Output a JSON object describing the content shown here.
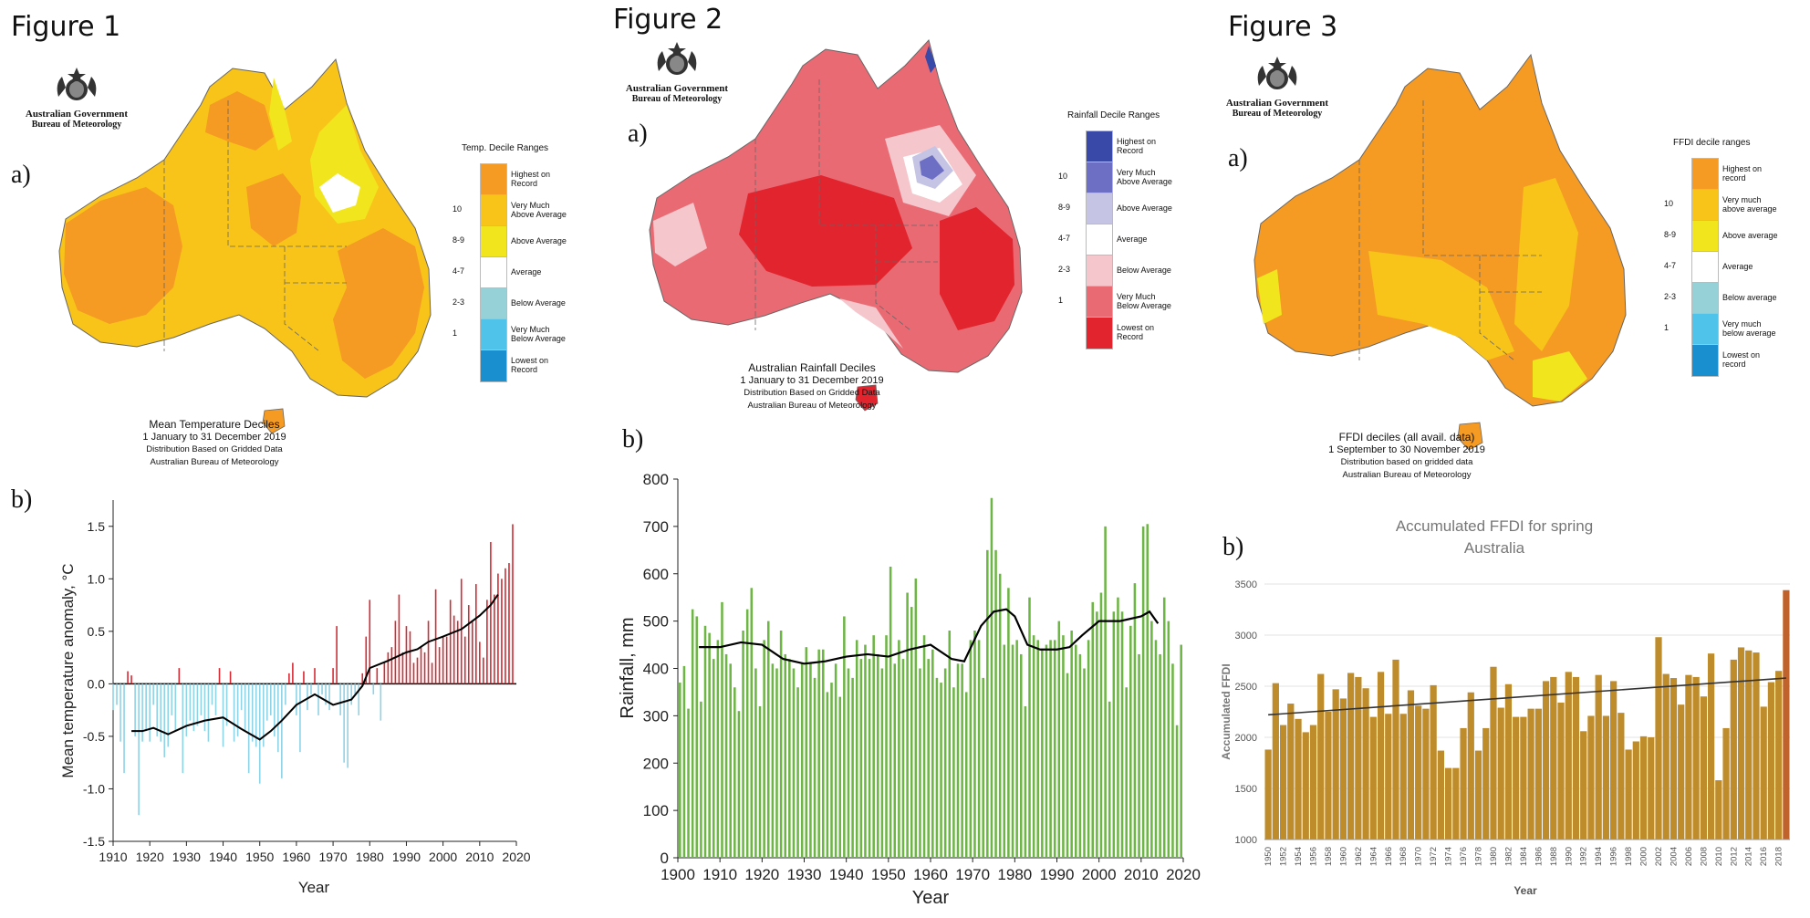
{
  "figures": {
    "f1": {
      "label": "Figure 1",
      "sub_a": "a)",
      "sub_b": "b)",
      "logo": {
        "gov": "Australian Government",
        "bureau": "Bureau of Meteorology"
      },
      "legend_title": "Temp. Decile Ranges",
      "legend": [
        {
          "rank": "",
          "label1": "Highest on",
          "label2": "Record",
          "color": "#f59a23"
        },
        {
          "rank": "10",
          "label1": "Very Much",
          "label2": "Above Average",
          "color": "#f8c41a"
        },
        {
          "rank": "8-9",
          "label1": "Above Average",
          "label2": "",
          "color": "#f1e61e"
        },
        {
          "rank": "4-7",
          "label1": "Average",
          "label2": "",
          "color": "#ffffff"
        },
        {
          "rank": "2-3",
          "label1": "Below Average",
          "label2": "",
          "color": "#96d1d8"
        },
        {
          "rank": "1",
          "label1": "Very Much",
          "label2": "Below Average",
          "color": "#4fc3ea"
        },
        {
          "rank": "",
          "label1": "Lowest on",
          "label2": "Record",
          "color": "#1a8fcf"
        }
      ],
      "caption": {
        "title": "Mean Temperature Deciles",
        "period": "1 January to 31 December 2019",
        "line3": "Distribution Based on Gridded Data",
        "line4": "Australian Bureau of Meteorology"
      }
    },
    "f2": {
      "label": "Figure 2",
      "sub_a": "a)",
      "sub_b": "b)",
      "logo": {
        "gov": "Australian Government",
        "bureau": "Bureau of Meteorology"
      },
      "legend_title": "Rainfall Decile Ranges",
      "legend": [
        {
          "rank": "",
          "label1": "Highest on",
          "label2": "Record",
          "color": "#3949a8"
        },
        {
          "rank": "10",
          "label1": "Very Much",
          "label2": "Above Average",
          "color": "#6d6fc4"
        },
        {
          "rank": "8-9",
          "label1": "Above Average",
          "label2": "",
          "color": "#c6c4e4"
        },
        {
          "rank": "4-7",
          "label1": "Average",
          "label2": "",
          "color": "#ffffff"
        },
        {
          "rank": "2-3",
          "label1": "Below Average",
          "label2": "",
          "color": "#f5c6cb"
        },
        {
          "rank": "1",
          "label1": "Very Much",
          "label2": "Below Average",
          "color": "#ea6a74"
        },
        {
          "rank": "",
          "label1": "Lowest on",
          "label2": "Record",
          "color": "#e1242e"
        }
      ],
      "caption": {
        "title": "Australian Rainfall Deciles",
        "period": "1 January to 31 December 2019",
        "line3": "Distribution Based on Gridded Data",
        "line4": "Australian Bureau of Meteorology"
      }
    },
    "f3": {
      "label": "Figure 3",
      "sub_a": "a)",
      "sub_b": "b)",
      "logo": {
        "gov": "Australian Government",
        "bureau": "Bureau of Meteorology"
      },
      "legend_title": "FFDI decile ranges",
      "legend": [
        {
          "rank": "",
          "label1": "Highest on",
          "label2": "record",
          "color": "#f59a23"
        },
        {
          "rank": "10",
          "label1": "Very much",
          "label2": "above average",
          "color": "#f8c41a"
        },
        {
          "rank": "8-9",
          "label1": "Above average",
          "label2": "",
          "color": "#f1e61e"
        },
        {
          "rank": "4-7",
          "label1": "Average",
          "label2": "",
          "color": "#ffffff"
        },
        {
          "rank": "2-3",
          "label1": "Below average",
          "label2": "",
          "color": "#96d1d8"
        },
        {
          "rank": "1",
          "label1": "Very much",
          "label2": "below average",
          "color": "#4fc3ea"
        },
        {
          "rank": "",
          "label1": "Lowest on",
          "label2": "record",
          "color": "#1a8fcf"
        }
      ],
      "caption": {
        "title": "FFDI deciles (all avail. data)",
        "period": "1 September to 30 November 2019",
        "line3": "Distribution based on gridded data",
        "line4": "Australian Bureau of Meteorology"
      }
    }
  },
  "chart_data": [
    {
      "id": "temperature",
      "type": "bar",
      "title": "",
      "xlabel": "Year",
      "ylabel": "Mean temperature anomaly, °C",
      "xlim": [
        1910,
        2020
      ],
      "ylim": [
        -1.5,
        1.75
      ],
      "xticks": [
        "1910",
        "1920",
        "1930",
        "1940",
        "1950",
        "1960",
        "1970",
        "1980",
        "1990",
        "2000",
        "2010",
        "2020"
      ],
      "yticks": [
        "-1.5",
        "-1.0",
        "-0.5",
        "0.0",
        "0.5",
        "1.0",
        "1.5"
      ],
      "pos_color": "#d62b34",
      "neg_color": "#8fd3e6",
      "smooth_color": "#000000",
      "x": [
        1910,
        1911,
        1912,
        1913,
        1914,
        1915,
        1916,
        1917,
        1918,
        1919,
        1920,
        1921,
        1922,
        1923,
        1924,
        1925,
        1926,
        1927,
        1928,
        1929,
        1930,
        1931,
        1932,
        1933,
        1934,
        1935,
        1936,
        1937,
        1938,
        1939,
        1940,
        1941,
        1942,
        1943,
        1944,
        1945,
        1946,
        1947,
        1948,
        1949,
        1950,
        1951,
        1952,
        1953,
        1954,
        1955,
        1956,
        1957,
        1958,
        1959,
        1960,
        1961,
        1962,
        1963,
        1964,
        1965,
        1966,
        1967,
        1968,
        1969,
        1970,
        1971,
        1972,
        1973,
        1974,
        1975,
        1976,
        1977,
        1978,
        1979,
        1980,
        1981,
        1982,
        1983,
        1984,
        1985,
        1986,
        1987,
        1988,
        1989,
        1990,
        1991,
        1992,
        1993,
        1994,
        1995,
        1996,
        1997,
        1998,
        1999,
        2000,
        2001,
        2002,
        2003,
        2004,
        2005,
        2006,
        2007,
        2008,
        2009,
        2010,
        2011,
        2012,
        2013,
        2014,
        2015,
        2016,
        2017,
        2018,
        2019
      ],
      "values": [
        -0.25,
        -0.2,
        -0.55,
        -0.85,
        0.12,
        0.08,
        -0.5,
        -1.25,
        -0.55,
        -0.45,
        -0.55,
        -0.2,
        -0.5,
        -0.55,
        -0.7,
        -0.6,
        -0.3,
        -0.45,
        0.15,
        -0.85,
        -0.5,
        -0.35,
        -0.45,
        -0.4,
        -0.3,
        -0.45,
        -0.55,
        -0.2,
        -0.3,
        0.15,
        -0.6,
        -0.4,
        0.12,
        -0.55,
        -0.5,
        -0.25,
        -0.45,
        -0.85,
        -0.55,
        -0.6,
        -0.95,
        -0.6,
        -0.35,
        -0.3,
        -0.5,
        -0.65,
        -0.9,
        -0.2,
        0.1,
        0.2,
        -0.3,
        -0.65,
        0.12,
        -0.25,
        -0.1,
        0.15,
        -0.3,
        -0.1,
        -0.2,
        -0.25,
        0.15,
        0.55,
        -0.3,
        -0.75,
        -0.8,
        -0.2,
        -0.1,
        -0.3,
        0.1,
        0.45,
        0.8,
        -0.1,
        0.15,
        -0.35,
        0.2,
        0.3,
        0.35,
        0.6,
        0.85,
        0.3,
        0.55,
        0.5,
        0.2,
        0.25,
        0.35,
        0.3,
        0.6,
        0.2,
        0.9,
        0.35,
        0.45,
        0.45,
        0.8,
        0.65,
        0.6,
        1.0,
        0.45,
        0.75,
        0.6,
        0.95,
        0.4,
        0.25,
        0.8,
        1.35,
        0.85,
        1.05,
        1.0,
        1.1,
        1.15,
        1.52
      ],
      "smooth_x": [
        1915,
        1918,
        1921,
        1925,
        1930,
        1935,
        1940,
        1945,
        1950,
        1953,
        1956,
        1960,
        1965,
        1970,
        1975,
        1978,
        1980,
        1985,
        1990,
        1993,
        1996,
        2000,
        2005,
        2010,
        2013,
        2015
      ],
      "smooth_y": [
        -0.45,
        -0.45,
        -0.42,
        -0.48,
        -0.4,
        -0.35,
        -0.32,
        -0.43,
        -0.53,
        -0.45,
        -0.35,
        -0.2,
        -0.1,
        -0.2,
        -0.15,
        -0.02,
        0.15,
        0.22,
        0.3,
        0.33,
        0.4,
        0.45,
        0.52,
        0.65,
        0.75,
        0.85
      ]
    },
    {
      "id": "rainfall",
      "type": "bar",
      "title": "",
      "xlabel": "Year",
      "ylabel": "Rainfall, mm",
      "xlim": [
        1900,
        2020
      ],
      "ylim": [
        0,
        800
      ],
      "xticks": [
        "1900",
        "1910",
        "1920",
        "1930",
        "1940",
        "1950",
        "1960",
        "1970",
        "1980",
        "1990",
        "2000",
        "2010",
        "2020"
      ],
      "yticks": [
        "0",
        "100",
        "200",
        "300",
        "400",
        "500",
        "600",
        "700",
        "800"
      ],
      "bar_color": "#6db545",
      "smooth_color": "#000000",
      "x": [
        1900,
        1901,
        1902,
        1903,
        1904,
        1905,
        1906,
        1907,
        1908,
        1909,
        1910,
        1911,
        1912,
        1913,
        1914,
        1915,
        1916,
        1917,
        1918,
        1919,
        1920,
        1921,
        1922,
        1923,
        1924,
        1925,
        1926,
        1927,
        1928,
        1929,
        1930,
        1931,
        1932,
        1933,
        1934,
        1935,
        1936,
        1937,
        1938,
        1939,
        1940,
        1941,
        1942,
        1943,
        1944,
        1945,
        1946,
        1947,
        1948,
        1949,
        1950,
        1951,
        1952,
        1953,
        1954,
        1955,
        1956,
        1957,
        1958,
        1959,
        1960,
        1961,
        1962,
        1963,
        1964,
        1965,
        1966,
        1967,
        1968,
        1969,
        1970,
        1971,
        1972,
        1973,
        1974,
        1975,
        1976,
        1977,
        1978,
        1979,
        1980,
        1981,
        1982,
        1983,
        1984,
        1985,
        1986,
        1987,
        1988,
        1989,
        1990,
        1991,
        1992,
        1993,
        1994,
        1995,
        1996,
        1997,
        1998,
        1999,
        2000,
        2001,
        2002,
        2003,
        2004,
        2005,
        2006,
        2007,
        2008,
        2009,
        2010,
        2011,
        2012,
        2013,
        2014,
        2015,
        2016,
        2017,
        2018,
        2019
      ],
      "values": [
        370,
        405,
        315,
        525,
        510,
        330,
        490,
        475,
        420,
        460,
        540,
        430,
        410,
        360,
        310,
        480,
        525,
        570,
        400,
        320,
        460,
        500,
        410,
        400,
        480,
        430,
        420,
        400,
        360,
        410,
        445,
        410,
        380,
        440,
        440,
        350,
        370,
        410,
        340,
        510,
        400,
        380,
        460,
        420,
        450,
        420,
        470,
        430,
        400,
        470,
        615,
        410,
        460,
        420,
        560,
        530,
        590,
        400,
        470,
        420,
        440,
        380,
        370,
        400,
        480,
        360,
        410,
        410,
        350,
        460,
        480,
        460,
        380,
        650,
        760,
        650,
        600,
        450,
        570,
        450,
        460,
        430,
        320,
        550,
        470,
        460,
        440,
        450,
        460,
        460,
        500,
        470,
        390,
        480,
        450,
        430,
        400,
        460,
        540,
        520,
        560,
        700,
        330,
        520,
        550,
        520,
        360,
        490,
        580,
        430,
        700,
        705,
        500,
        460,
        430,
        550,
        500,
        410,
        280,
        450
      ],
      "smooth_x": [
        1905,
        1910,
        1915,
        1920,
        1925,
        1930,
        1935,
        1940,
        1945,
        1950,
        1955,
        1960,
        1965,
        1968,
        1972,
        1975,
        1978,
        1980,
        1983,
        1986,
        1990,
        1993,
        1996,
        2000,
        2005,
        2010,
        2012,
        2014
      ],
      "smooth_y": [
        445,
        445,
        455,
        450,
        420,
        410,
        415,
        425,
        430,
        425,
        440,
        450,
        420,
        415,
        490,
        520,
        525,
        510,
        450,
        440,
        440,
        445,
        470,
        500,
        500,
        510,
        520,
        495
      ]
    },
    {
      "id": "ffdi",
      "type": "bar",
      "title": "Accumulated FFDI for spring",
      "subtitle": "Australia",
      "xlabel": "Year",
      "ylabel": "Accumulated FFDI",
      "ylim": [
        1000,
        3500
      ],
      "yticks": [
        "1000",
        "1500",
        "2000",
        "2500",
        "3000",
        "3500"
      ],
      "xticks": [
        "1950",
        "1952",
        "1954",
        "1956",
        "1958",
        "1960",
        "1962",
        "1964",
        "1966",
        "1968",
        "1970",
        "1972",
        "1974",
        "1976",
        "1978",
        "1980",
        "1982",
        "1984",
        "1986",
        "1988",
        "1990",
        "1992",
        "1994",
        "1996",
        "1998",
        "2000",
        "2002",
        "2004",
        "2006",
        "2008",
        "2010",
        "2012",
        "2014",
        "2016",
        "2018"
      ],
      "bar_color": "#bf8c2b",
      "highlight_color": "#c0622b",
      "trend_color": "#333333",
      "x": [
        1950,
        1951,
        1952,
        1953,
        1954,
        1955,
        1956,
        1957,
        1958,
        1959,
        1960,
        1961,
        1962,
        1963,
        1964,
        1965,
        1966,
        1967,
        1968,
        1969,
        1970,
        1971,
        1972,
        1973,
        1974,
        1975,
        1976,
        1977,
        1978,
        1979,
        1980,
        1981,
        1982,
        1983,
        1984,
        1985,
        1986,
        1987,
        1988,
        1989,
        1990,
        1991,
        1992,
        1993,
        1994,
        1995,
        1996,
        1997,
        1998,
        1999,
        2000,
        2001,
        2002,
        2003,
        2004,
        2005,
        2006,
        2007,
        2008,
        2009,
        2010,
        2011,
        2012,
        2013,
        2014,
        2015,
        2016,
        2017,
        2018,
        2019
      ],
      "values": [
        1880,
        2530,
        2120,
        2330,
        2180,
        2050,
        2120,
        2620,
        2250,
        2470,
        2380,
        2630,
        2590,
        2480,
        2200,
        2640,
        2230,
        2760,
        2230,
        2460,
        2310,
        2280,
        2510,
        1870,
        1700,
        1700,
        2090,
        2440,
        1870,
        2090,
        2690,
        2290,
        2520,
        2200,
        2200,
        2280,
        2280,
        2550,
        2590,
        2340,
        2640,
        2590,
        2060,
        2210,
        2610,
        2210,
        2550,
        2240,
        1880,
        1960,
        2010,
        2000,
        2980,
        2620,
        2580,
        2320,
        2610,
        2590,
        2400,
        2820,
        1580,
        2090,
        2760,
        2880,
        2850,
        2830,
        2300,
        2540,
        2650,
        3440
      ],
      "highlight_index": 69,
      "trend": [
        [
          1950,
          2220
        ],
        [
          2019,
          2580
        ]
      ]
    }
  ]
}
